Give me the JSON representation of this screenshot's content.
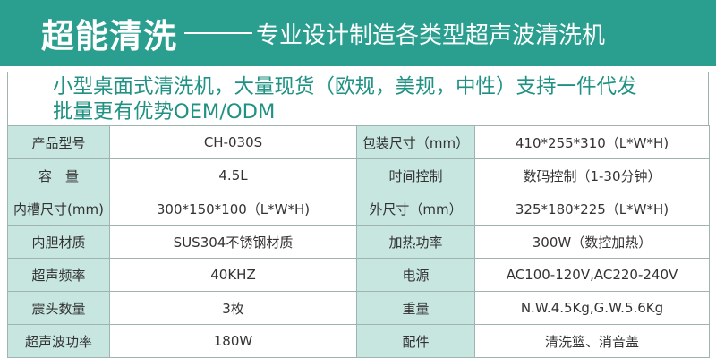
{
  "header": {
    "brand": "超能清洗",
    "tagline": "专业设计制造各类型超声波清洗机"
  },
  "banner": {
    "line1": "小型桌面式清洗机，大量现货（欧规，美规，中性）支持一件代发",
    "line2": "批量更有优势OEM/ODM"
  },
  "specs": [
    {
      "label1": "产品型号",
      "value1": "CH-030S",
      "label2": "包装尺寸（mm）",
      "value2": "410*255*310（L*W*H)"
    },
    {
      "label1": "容量",
      "value1": "4.5L",
      "label2": "时间控制",
      "value2": "数码控制（1-30分钟）"
    },
    {
      "label1": "内槽尺寸(mm)",
      "value1": "300*150*100（L*W*H)",
      "label2": "外尺寸（mm）",
      "value2": "325*180*225（L*W*H)"
    },
    {
      "label1": "内胆材质",
      "value1": "SUS304不锈钢材质",
      "label2": "加热功率",
      "value2": "300W（数控加热）"
    },
    {
      "label1": "超声频率",
      "value1": "40KHZ",
      "label2": "电源",
      "value2": "AC100-120V,AC220-240V"
    },
    {
      "label1": "震头数量",
      "value1": "3枚",
      "label2": "重量",
      "value2": "N.W.4.5Kg,G.W.5.6Kg"
    },
    {
      "label1": "超声波功率",
      "value1": "180W",
      "label2": "配件",
      "value2": "清洗篮、消音盖"
    }
  ]
}
